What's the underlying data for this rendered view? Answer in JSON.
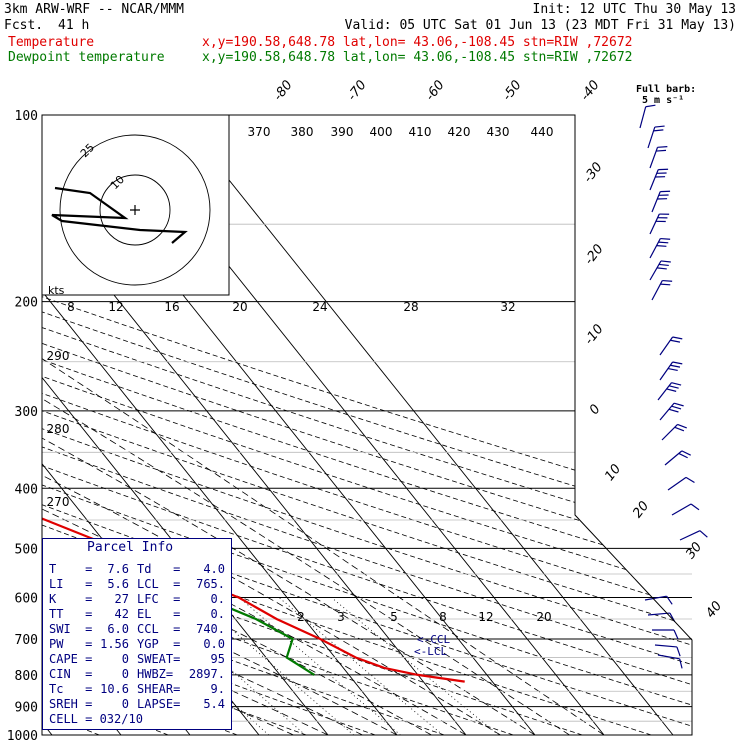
{
  "header": {
    "model": "3km ARW-WRF -- NCAR/MMM",
    "init": "Init: 12 UTC Thu 30 May 13",
    "fcst_label": "Fcst.",
    "fcst_value": "41 h",
    "valid": "Valid: 05 UTC Sat 01 Jun 13 (23 MDT Fri 31 May 13)",
    "temperature_label": "Temperature",
    "dewpoint_label": "Dewpoint temperature",
    "loc_line": "x,y=190.58,648.78   lat,lon= 43.06,-108.45   stn=RIW ,72672",
    "full_barb_1": "Full barb:",
    "full_barb_2": "5 m s⁻¹"
  },
  "colors": {
    "temperature": "#e00000",
    "dewpoint": "#007a00",
    "parcel_box": "#000080",
    "barbs": "#000080"
  },
  "chart_data": {
    "type": "skew-t log-p",
    "pressure_levels": [
      "100",
      "200",
      "300",
      "400",
      "500",
      "600",
      "700",
      "800",
      "900",
      "1000"
    ],
    "isotherm_labels": [
      "-80",
      "-70",
      "-60",
      "-50",
      "-40",
      "-30",
      "-20",
      "-10",
      "0",
      "10",
      "20",
      "30",
      "40"
    ],
    "potential_temperature_labels": [
      "370",
      "380",
      "390",
      "400",
      "410",
      "420",
      "430",
      "440"
    ],
    "dry_adiabat_labels": [
      "290",
      "280",
      "270"
    ],
    "mixing_ratio_labels": [
      "2",
      "3",
      "5",
      "8",
      "12",
      "20"
    ],
    "hodograph": {
      "units_label": "kts",
      "ring_labels": [
        "10",
        "25"
      ],
      "speed_axis_labels": [
        "8",
        "12",
        "16",
        "20",
        "24",
        "28",
        "32"
      ]
    },
    "temperature_profile": [
      {
        "p": 100,
        "t": -58
      },
      {
        "p": 130,
        "t": -58
      },
      {
        "p": 160,
        "t": -58
      },
      {
        "p": 200,
        "t": -55
      },
      {
        "p": 230,
        "t": -54
      },
      {
        "p": 250,
        "t": -52
      },
      {
        "p": 300,
        "t": -42
      },
      {
        "p": 350,
        "t": -33
      },
      {
        "p": 400,
        "t": -24
      },
      {
        "p": 450,
        "t": -16
      },
      {
        "p": 500,
        "t": -9
      },
      {
        "p": 550,
        "t": -3
      },
      {
        "p": 600,
        "t": 3
      },
      {
        "p": 650,
        "t": 6
      },
      {
        "p": 700,
        "t": 10
      },
      {
        "p": 750,
        "t": 13
      },
      {
        "p": 780,
        "t": 16
      },
      {
        "p": 800,
        "t": 20
      },
      {
        "p": 820,
        "t": 26
      }
    ],
    "dewpoint_profile": [
      {
        "p": 100,
        "t": -85
      },
      {
        "p": 120,
        "t": -83
      },
      {
        "p": 150,
        "t": -78
      },
      {
        "p": 170,
        "t": -75
      },
      {
        "p": 200,
        "t": -62
      },
      {
        "p": 250,
        "t": -54
      },
      {
        "p": 300,
        "t": -47
      },
      {
        "p": 350,
        "t": -38
      },
      {
        "p": 400,
        "t": -31
      },
      {
        "p": 450,
        "t": -24
      },
      {
        "p": 500,
        "t": -18
      },
      {
        "p": 550,
        "t": -10
      },
      {
        "p": 600,
        "t": -2
      },
      {
        "p": 650,
        "t": 3
      },
      {
        "p": 700,
        "t": 6
      },
      {
        "p": 750,
        "t": 3
      },
      {
        "p": 800,
        "t": 5
      }
    ],
    "annotations": [
      "<-CCL",
      "<-LCL"
    ],
    "title": ""
  },
  "parcel_info": {
    "title": "Parcel Info",
    "rows": [
      [
        "T    =",
        "7.6",
        "Td   =",
        "4.0"
      ],
      [
        "LI   =",
        "5.6",
        "LCL  =",
        "765."
      ],
      [
        "K    =",
        "27",
        "LFC  =",
        "0."
      ],
      [
        "TT   =",
        "42",
        "EL   =",
        "0."
      ],
      [
        "SWI  =",
        "6.0",
        "CCL  =",
        "740."
      ],
      [
        "PW   =",
        "1.56",
        "YGP  =",
        "0.0"
      ],
      [
        "CAPE =",
        "0",
        "SWEAT=",
        "95"
      ],
      [
        "CIN  =",
        "0",
        "HWBZ=",
        "2897."
      ],
      [
        "Tc   =",
        "10.6",
        "SHEAR=",
        "9."
      ],
      [
        "SREH =",
        "0",
        "LAPSE=",
        "5.4"
      ]
    ],
    "cell": "CELL = 032/10"
  }
}
